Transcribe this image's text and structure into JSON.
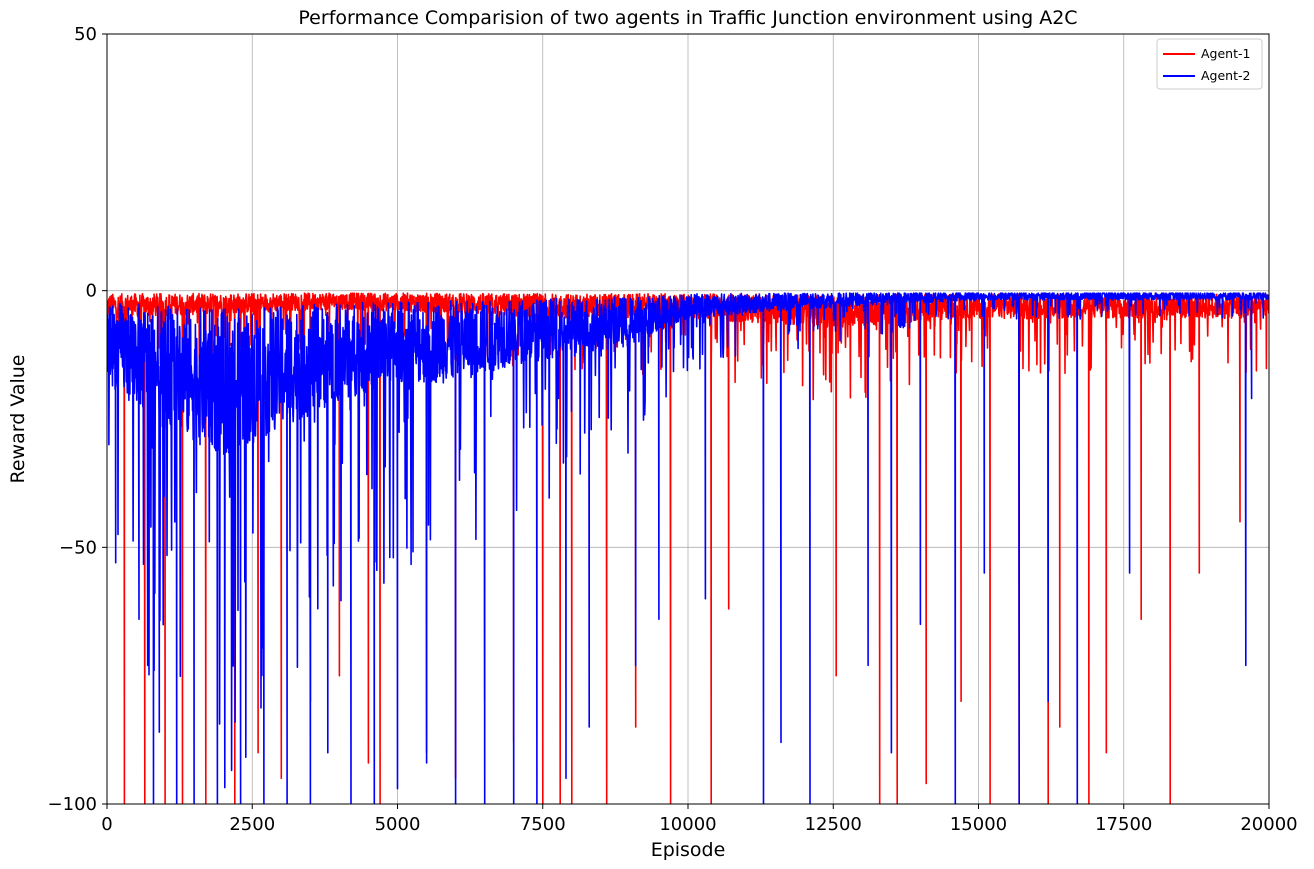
{
  "chart_data": {
    "type": "line",
    "title": "Performance Comparision of two agents in Traffic Junction environment using A2C",
    "xlabel": "Episode",
    "ylabel": "Reward Value",
    "xlim": [
      0,
      20000
    ],
    "ylim": [
      -100,
      50
    ],
    "x_ticks": [
      0,
      2500,
      5000,
      7500,
      10000,
      12500,
      15000,
      17500,
      20000
    ],
    "x_tick_labels": [
      "0",
      "2500",
      "5000",
      "7500",
      "10000",
      "12500",
      "15000",
      "17500",
      "20000"
    ],
    "y_ticks": [
      -100,
      -50,
      0,
      50
    ],
    "y_tick_labels": [
      "−100",
      "−50",
      "0",
      "50"
    ],
    "grid": true,
    "legend_position": "top-right",
    "x_range": [
      0,
      20000
    ],
    "series": [
      {
        "name": "Agent-1",
        "color": "#ff0000",
        "baseline": [
          [
            0,
            -3
          ],
          [
            4000,
            -2
          ],
          [
            8000,
            -3
          ],
          [
            10000,
            -3
          ],
          [
            12500,
            -4
          ],
          [
            15000,
            -3
          ],
          [
            17500,
            -3
          ],
          [
            20000,
            -3
          ]
        ],
        "spikes": [
          [
            300,
            -100
          ],
          [
            650,
            -100
          ],
          [
            1000,
            -100
          ],
          [
            1300,
            -100
          ],
          [
            1700,
            -100
          ],
          [
            2200,
            -100
          ],
          [
            2600,
            -90
          ],
          [
            3000,
            -95
          ],
          [
            3500,
            -80
          ],
          [
            4000,
            -75
          ],
          [
            4500,
            -92
          ],
          [
            4700,
            -100
          ],
          [
            5500,
            -90
          ],
          [
            6000,
            -95
          ],
          [
            6500,
            -80
          ],
          [
            7000,
            -88
          ],
          [
            7500,
            -100
          ],
          [
            7800,
            -100
          ],
          [
            8000,
            -100
          ],
          [
            8600,
            -100
          ],
          [
            9100,
            -85
          ],
          [
            9700,
            -100
          ],
          [
            10400,
            -100
          ],
          [
            10700,
            -62
          ],
          [
            12550,
            -75
          ],
          [
            13300,
            -100
          ],
          [
            13600,
            -100
          ],
          [
            14100,
            -96
          ],
          [
            14700,
            -80
          ],
          [
            15200,
            -100
          ],
          [
            15700,
            -100
          ],
          [
            16200,
            -100
          ],
          [
            16400,
            -85
          ],
          [
            16900,
            -100
          ],
          [
            17200,
            -90
          ],
          [
            17800,
            -64
          ],
          [
            18300,
            -100
          ],
          [
            18800,
            -55
          ],
          [
            19500,
            -45
          ]
        ]
      },
      {
        "name": "Agent-2",
        "color": "#0000ff",
        "baseline": [
          [
            0,
            -10
          ],
          [
            1000,
            -15
          ],
          [
            2000,
            -18
          ],
          [
            3000,
            -15
          ],
          [
            4000,
            -12
          ],
          [
            5000,
            -10
          ],
          [
            6000,
            -10
          ],
          [
            7000,
            -8
          ],
          [
            8000,
            -7
          ],
          [
            9000,
            -6
          ],
          [
            10000,
            -3
          ],
          [
            12000,
            -2
          ],
          [
            15000,
            -1
          ],
          [
            20000,
            -1
          ]
        ],
        "spikes": [
          [
            150,
            -53
          ],
          [
            550,
            -64
          ],
          [
            700,
            -73
          ],
          [
            800,
            -100
          ],
          [
            900,
            -86
          ],
          [
            1200,
            -100
          ],
          [
            1500,
            -100
          ],
          [
            1900,
            -100
          ],
          [
            2300,
            -100
          ],
          [
            2700,
            -100
          ],
          [
            3100,
            -100
          ],
          [
            3500,
            -100
          ],
          [
            3800,
            -90
          ],
          [
            4200,
            -100
          ],
          [
            4600,
            -100
          ],
          [
            5000,
            -97
          ],
          [
            5500,
            -92
          ],
          [
            6000,
            -100
          ],
          [
            6500,
            -100
          ],
          [
            7000,
            -100
          ],
          [
            7400,
            -100
          ],
          [
            7900,
            -95
          ],
          [
            8300,
            -85
          ],
          [
            9100,
            -73
          ],
          [
            9500,
            -64
          ],
          [
            10300,
            -60
          ],
          [
            11300,
            -100
          ],
          [
            11600,
            -88
          ],
          [
            12100,
            -100
          ],
          [
            13100,
            -73
          ],
          [
            13500,
            -90
          ],
          [
            14000,
            -65
          ],
          [
            14600,
            -100
          ],
          [
            15100,
            -55
          ],
          [
            15700,
            -100
          ],
          [
            16200,
            -80
          ],
          [
            16700,
            -100
          ],
          [
            17600,
            -55
          ],
          [
            19600,
            -73
          ],
          [
            19700,
            -21
          ]
        ]
      }
    ]
  }
}
